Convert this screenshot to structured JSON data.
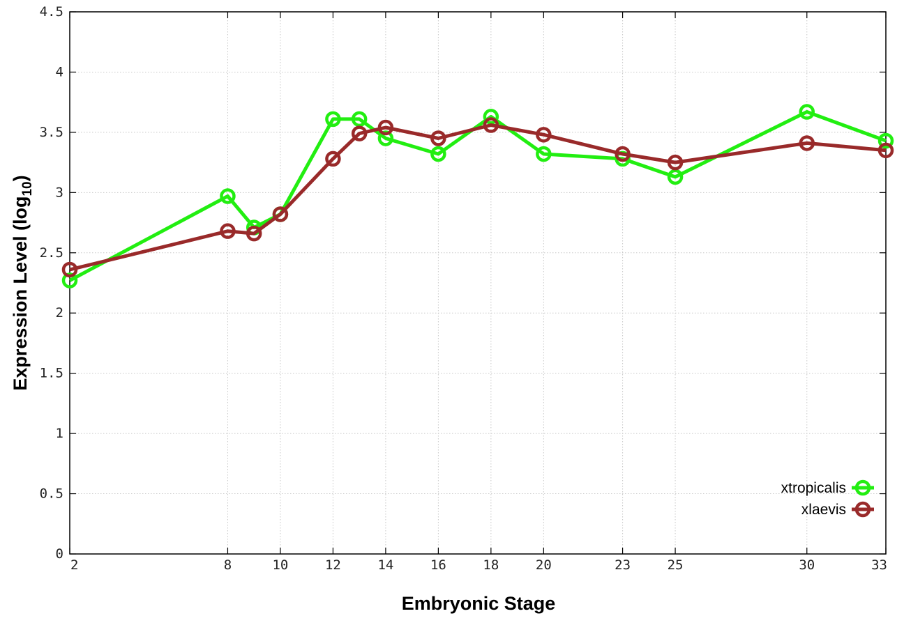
{
  "chart_data": {
    "type": "line",
    "xlabel": "Embryonic Stage",
    "ylabel_main": "Expression Level (log",
    "ylabel_sub": "10",
    "ylabel_close": ")",
    "x_ticks": [
      2,
      8,
      10,
      12,
      14,
      16,
      18,
      20,
      23,
      25,
      30,
      33
    ],
    "x_tick_labels": [
      "2",
      "8",
      "10",
      "12",
      "14",
      "16",
      "18",
      "20",
      "23",
      "25",
      "30",
      "33"
    ],
    "y_ticks": [
      0,
      0.5,
      1,
      1.5,
      2,
      2.5,
      3,
      3.5,
      4,
      4.5
    ],
    "y_tick_labels": [
      "0",
      "0.5",
      "1",
      "1.5",
      "2",
      "2.5",
      "3",
      "3.5",
      "4",
      "4.5"
    ],
    "xlim": [
      2,
      33
    ],
    "ylim": [
      0,
      4.5
    ],
    "grid": true,
    "legend_position": "bottom-right",
    "x_values": [
      2,
      8,
      9,
      10,
      12,
      13,
      14,
      16,
      18,
      20,
      23,
      25,
      30,
      33
    ],
    "series": [
      {
        "name": "xtropicalis",
        "color": "#22ee11",
        "values": [
          2.27,
          2.97,
          2.71,
          2.82,
          3.61,
          3.61,
          3.45,
          3.32,
          3.63,
          3.32,
          3.28,
          3.13,
          3.67,
          3.43
        ]
      },
      {
        "name": "xlaevis",
        "color": "#992a2a",
        "values": [
          2.36,
          2.68,
          2.66,
          2.82,
          3.28,
          3.49,
          3.54,
          3.45,
          3.56,
          3.48,
          3.32,
          3.25,
          3.41,
          3.35
        ]
      }
    ]
  }
}
